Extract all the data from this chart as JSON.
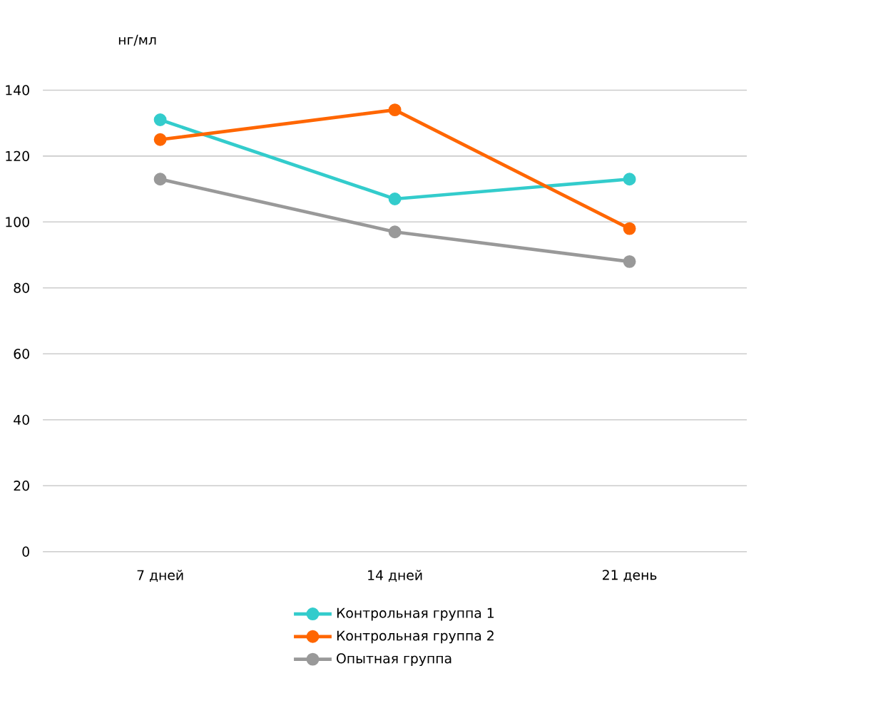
{
  "chart_data": {
    "type": "line",
    "ylabel": "нг/мл",
    "categories": [
      "7 дней",
      "14 дней",
      "21 день"
    ],
    "series": [
      {
        "name": "Контрольная группа 1",
        "color": "#33cccc",
        "values": [
          131,
          107,
          113
        ]
      },
      {
        "name": "Контрольная группа 2",
        "color": "#ff6600",
        "values": [
          125,
          134,
          98
        ]
      },
      {
        "name": "Опытная группа",
        "color": "#999999",
        "values": [
          113,
          97,
          88
        ]
      }
    ],
    "ylim": [
      0,
      140
    ],
    "yticks": [
      0,
      20,
      40,
      60,
      80,
      100,
      120,
      140
    ],
    "grid": "y",
    "legend": "bottom",
    "marker": "circle",
    "line_style": "solid"
  }
}
